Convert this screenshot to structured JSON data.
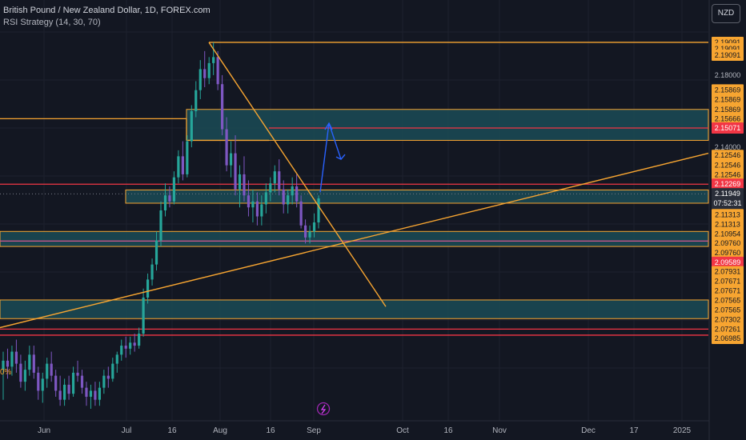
{
  "header": {
    "title": "British Pound / New Zealand Dollar, 1D, FOREX.com",
    "indicator": "RSI Strategy (14, 30, 70)"
  },
  "currency_button": "NZD",
  "corner_label": "0%",
  "colors": {
    "background": "#131722",
    "up_candle": "#26a69a",
    "down_candle": "#7e57c2",
    "orange_line": "#f7a531",
    "red_line": "#f23645",
    "blue_arrow": "#2962ff",
    "zone_fill": "#1b4b56",
    "pink_line": "#c2578b"
  },
  "icons": {
    "bolt": "lightning-bolt-icon"
  },
  "chart_data": {
    "type": "candlestick",
    "x_axis": {
      "ticks": [
        "Jun",
        "Jul",
        "16",
        "Aug",
        "16",
        "Sep",
        "Oct",
        "16",
        "Nov",
        "Dec",
        "17",
        "2025"
      ]
    },
    "y_axis": {
      "range": [
        2.065,
        2.205
      ],
      "price_labels": [
        {
          "text": "2.19091",
          "price": 2.19091,
          "style": "orange"
        },
        {
          "text": "2.19091",
          "price": 2.18878,
          "style": "orange"
        },
        {
          "text": "2.19091",
          "price": 2.18665,
          "style": "orange"
        },
        {
          "text": "2.18000",
          "price": 2.18,
          "style": "plain"
        },
        {
          "text": "2.15869",
          "price": 2.1751,
          "style": "orange"
        },
        {
          "text": "2.15869",
          "price": 2.1718,
          "style": "orange"
        },
        {
          "text": "2.15869",
          "price": 2.1686,
          "style": "orange"
        },
        {
          "text": "2.15666",
          "price": 2.1655,
          "style": "orange"
        },
        {
          "text": "2.15071",
          "price": 2.16241,
          "style": "red"
        },
        {
          "text": "2.14000",
          "price": 2.156,
          "style": "plain"
        },
        {
          "text": "2.12546",
          "price": 2.1533,
          "style": "orange"
        },
        {
          "text": "2.12546",
          "price": 2.1501,
          "style": "orange"
        },
        {
          "text": "2.12546",
          "price": 2.1468,
          "style": "orange"
        },
        {
          "text": "2.12269",
          "price": 2.14372,
          "style": "red"
        },
        {
          "text": "2.11949",
          "price": 2.14054,
          "style": "current"
        },
        {
          "text": "07:52:31",
          "price": 2.13734,
          "style": "current"
        },
        {
          "text": "2.11313",
          "price": 2.1336,
          "style": "orange"
        },
        {
          "text": "2.11313",
          "price": 2.1304,
          "style": "orange"
        },
        {
          "text": "2.10954",
          "price": 2.1272,
          "style": "orange"
        },
        {
          "text": "2.09760",
          "price": 2.1241,
          "style": "orange"
        },
        {
          "text": "2.09760",
          "price": 2.1209,
          "style": "orange"
        },
        {
          "text": "2.09589",
          "price": 2.11772,
          "style": "red"
        },
        {
          "text": "2.07931",
          "price": 2.1146,
          "style": "orange"
        },
        {
          "text": "2.07671",
          "price": 2.1114,
          "style": "orange"
        },
        {
          "text": "2.07671",
          "price": 2.1082,
          "style": "orange"
        },
        {
          "text": "2.07565",
          "price": 2.1051,
          "style": "orange"
        },
        {
          "text": "2.07565",
          "price": 2.1019,
          "style": "orange"
        },
        {
          "text": "2.07302",
          "price": 2.0987,
          "style": "orange"
        },
        {
          "text": "2.07261",
          "price": 2.0955,
          "style": "orange"
        },
        {
          "text": "2.06985",
          "price": 2.0924,
          "style": "orange"
        }
      ]
    },
    "candles": [
      [
        2.082,
        2.088,
        2.072,
        2.085
      ],
      [
        2.085,
        2.089,
        2.079,
        2.083
      ],
      [
        2.083,
        2.09,
        2.08,
        2.088
      ],
      [
        2.088,
        2.092,
        2.081,
        2.084
      ],
      [
        2.084,
        2.087,
        2.076,
        2.078
      ],
      [
        2.078,
        2.085,
        2.075,
        2.082
      ],
      [
        2.082,
        2.09,
        2.08,
        2.087
      ],
      [
        2.087,
        2.09,
        2.079,
        2.081
      ],
      [
        2.081,
        2.083,
        2.072,
        2.075
      ],
      [
        2.075,
        2.081,
        2.071,
        2.079
      ],
      [
        2.079,
        2.086,
        2.076,
        2.084
      ],
      [
        2.084,
        2.088,
        2.078,
        2.08
      ],
      [
        2.08,
        2.082,
        2.073,
        2.075
      ],
      [
        2.075,
        2.08,
        2.07,
        2.072
      ],
      [
        2.072,
        2.079,
        2.07,
        2.077
      ],
      [
        2.077,
        2.08,
        2.072,
        2.074
      ],
      [
        2.074,
        2.083,
        2.073,
        2.081
      ],
      [
        2.081,
        2.085,
        2.078,
        2.08
      ],
      [
        2.08,
        2.082,
        2.074,
        2.076
      ],
      [
        2.076,
        2.078,
        2.07,
        2.073
      ],
      [
        2.073,
        2.077,
        2.069,
        2.075
      ],
      [
        2.075,
        2.078,
        2.07,
        2.072
      ],
      [
        2.072,
        2.078,
        2.07,
        2.076
      ],
      [
        2.076,
        2.082,
        2.074,
        2.08
      ],
      [
        2.08,
        2.083,
        2.076,
        2.079
      ],
      [
        2.079,
        2.086,
        2.078,
        2.084
      ],
      [
        2.084,
        2.088,
        2.081,
        2.087
      ],
      [
        2.087,
        2.092,
        2.085,
        2.09
      ],
      [
        2.09,
        2.093,
        2.086,
        2.089
      ],
      [
        2.089,
        2.093,
        2.087,
        2.091
      ],
      [
        2.091,
        2.094,
        2.088,
        2.09
      ],
      [
        2.09,
        2.096,
        2.089,
        2.094
      ],
      [
        2.094,
        2.109,
        2.093,
        2.106
      ],
      [
        2.106,
        2.114,
        2.104,
        2.112
      ],
      [
        2.112,
        2.119,
        2.11,
        2.117
      ],
      [
        2.117,
        2.128,
        2.115,
        2.125
      ],
      [
        2.125,
        2.138,
        2.123,
        2.135
      ],
      [
        2.135,
        2.144,
        2.133,
        2.14
      ],
      [
        2.14,
        2.143,
        2.136,
        2.138
      ],
      [
        2.138,
        2.148,
        2.137,
        2.146
      ],
      [
        2.146,
        2.155,
        2.144,
        2.153
      ],
      [
        2.153,
        2.158,
        2.145,
        2.147
      ],
      [
        2.147,
        2.16,
        2.146,
        2.158
      ],
      [
        2.158,
        2.17,
        2.156,
        2.168
      ],
      [
        2.168,
        2.178,
        2.166,
        2.175
      ],
      [
        2.175,
        2.185,
        2.172,
        2.182
      ],
      [
        2.182,
        2.188,
        2.176,
        2.179
      ],
      [
        2.179,
        2.186,
        2.177,
        2.184
      ],
      [
        2.184,
        2.1909,
        2.18,
        2.186
      ],
      [
        2.186,
        2.188,
        2.175,
        2.177
      ],
      [
        2.177,
        2.18,
        2.16,
        2.162
      ],
      [
        2.162,
        2.166,
        2.148,
        2.15
      ],
      [
        2.15,
        2.158,
        2.146,
        2.154
      ],
      [
        2.154,
        2.16,
        2.14,
        2.142
      ],
      [
        2.142,
        2.15,
        2.136,
        2.147
      ],
      [
        2.147,
        2.153,
        2.138,
        2.14
      ],
      [
        2.14,
        2.145,
        2.133,
        2.136
      ],
      [
        2.136,
        2.142,
        2.131,
        2.138
      ],
      [
        2.138,
        2.141,
        2.13,
        2.133
      ],
      [
        2.133,
        2.14,
        2.13,
        2.137
      ],
      [
        2.137,
        2.144,
        2.134,
        2.141
      ],
      [
        2.141,
        2.146,
        2.138,
        2.144
      ],
      [
        2.144,
        2.15,
        2.141,
        2.148
      ],
      [
        2.148,
        2.152,
        2.14,
        2.142
      ],
      [
        2.142,
        2.145,
        2.134,
        2.137
      ],
      [
        2.137,
        2.142,
        2.134,
        2.14
      ],
      [
        2.14,
        2.146,
        2.137,
        2.143
      ],
      [
        2.143,
        2.147,
        2.136,
        2.138
      ],
      [
        2.138,
        2.14,
        2.129,
        2.13
      ],
      [
        2.13,
        2.132,
        2.124,
        2.126
      ],
      [
        2.126,
        2.13,
        2.124,
        2.128
      ],
      [
        2.128,
        2.134,
        2.126,
        2.131
      ],
      [
        2.131,
        2.14,
        2.129,
        2.139
      ]
    ],
    "levels": [
      {
        "type": "orange",
        "price": 2.19091,
        "x_start": 261,
        "label": ""
      },
      {
        "type": "orange",
        "price": 2.1655,
        "x_start": 0,
        "x_end": 233
      },
      {
        "type": "orange",
        "price": 2.1583,
        "x_start": 233,
        "x_end": 336
      },
      {
        "type": "red",
        "price": 2.16241,
        "x_start": 336
      },
      {
        "type": "red",
        "price": 2.14372,
        "x_start": 0
      },
      {
        "type": "red",
        "price": 2.0955,
        "x_start": 0
      },
      {
        "type": "red",
        "price": 2.0935,
        "x_start": 0
      },
      {
        "type": "pink",
        "price": 2.1248,
        "x_start": 0
      }
    ],
    "zones": [
      {
        "top": 2.1686,
        "bottom": 2.1583,
        "x_start": 233
      },
      {
        "top": 2.1418,
        "bottom": 2.1374,
        "x_start": 157
      },
      {
        "top": 2.128,
        "bottom": 2.123,
        "x_start": 0
      },
      {
        "top": 2.1052,
        "bottom": 2.099,
        "x_start": 0
      }
    ],
    "trendlines": [
      {
        "from": [
          261,
          2.19091
        ],
        "to": [
          482,
          2.103
        ],
        "color": "orange"
      },
      {
        "from": [
          0,
          2.096
        ],
        "to": [
          885,
          2.154
        ],
        "color": "orange"
      }
    ],
    "projection_arrow": {
      "points": [
        [
          400,
          2.141
        ],
        [
          411,
          2.164
        ],
        [
          426,
          2.152
        ]
      ],
      "color": "blue"
    }
  }
}
